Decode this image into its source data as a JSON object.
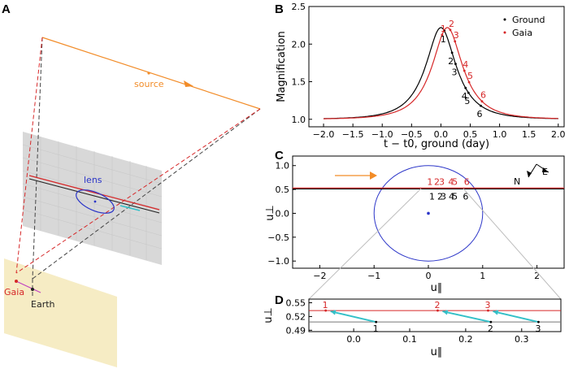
{
  "panel_labels": {
    "a": "A",
    "b": "B",
    "c": "C",
    "d": "D"
  },
  "panel_a": {
    "source_label": "source",
    "lens_label": "lens",
    "gaia_label": "Gaia",
    "earth_label": "Earth"
  },
  "colors": {
    "ground": "#000000",
    "gaia": "#d62728",
    "source": "#f28c28",
    "lens": "#2b35c8",
    "arrow": "#33c0c8",
    "plane": "#d8d8d8",
    "earth_plane": "#f6ecc4"
  },
  "chart_data": [
    {
      "panel": "B",
      "type": "line",
      "xlabel": "t − t0, ground (day)",
      "ylabel": "Magnification",
      "xlim": [
        -2.25,
        2.1
      ],
      "ylim": [
        0.9,
        2.5
      ],
      "xticks": [
        "−2.0",
        "−1.5",
        "−1.0",
        "−0.5",
        "0.0",
        "0.5",
        "1.0",
        "1.5",
        "2.0"
      ],
      "yticks": [
        "1.0",
        "1.5",
        "2.0",
        "2.5"
      ],
      "legend": [
        "Ground",
        "Gaia"
      ],
      "legend_placement": "top-right",
      "series": [
        {
          "name": "Ground",
          "peak_t": 0.0,
          "peak_A": 2.22,
          "t_E_day": 0.55,
          "baseline": 1.0
        },
        {
          "name": "Gaia",
          "peak_t": 0.11,
          "peak_A": 2.22,
          "t_E_day": 0.55,
          "baseline": 1.0
        }
      ],
      "epoch_labels": {
        "ground": [
          {
            "n": "1",
            "t": 0.06
          },
          {
            "n": "2",
            "t": 0.19
          },
          {
            "n": "3",
            "t": 0.25
          },
          {
            "n": "4",
            "t": 0.42
          },
          {
            "n": "5",
            "t": 0.47
          },
          {
            "n": "6",
            "t": 0.68
          }
        ],
        "gaia": [
          {
            "n": "1",
            "t": 0.02
          },
          {
            "n": "2",
            "t": 0.16
          },
          {
            "n": "3",
            "t": 0.24
          },
          {
            "n": "4",
            "t": 0.4
          },
          {
            "n": "5",
            "t": 0.48
          },
          {
            "n": "6",
            "t": 0.7
          }
        ]
      }
    },
    {
      "panel": "C",
      "type": "scatter",
      "xlabel": "u∥",
      "ylabel": "u⊥",
      "xlim": [
        -2.5,
        2.5
      ],
      "ylim": [
        -1.15,
        1.2
      ],
      "xticks": [
        "−2",
        "−1",
        "0",
        "1",
        "2"
      ],
      "yticks": [
        "−1.0",
        "−0.5",
        "0.0",
        "0.5",
        "1.0"
      ],
      "einstein_ring_radius": 1.0,
      "lens_position": [
        0,
        0
      ],
      "ground_track_u_perp": 0.51,
      "gaia_track_u_perp": 0.53,
      "compass": {
        "north": "N",
        "east": "E"
      },
      "ground_labels": [
        "1",
        "2",
        "3",
        "4",
        "5",
        "6"
      ],
      "gaia_labels": [
        "1",
        "2",
        "3",
        "4",
        "5",
        "6"
      ]
    },
    {
      "panel": "D",
      "type": "scatter",
      "xlabel": "u∥",
      "ylabel": "u⊥",
      "xlim": [
        -0.08,
        0.37
      ],
      "ylim": [
        0.487,
        0.558
      ],
      "xticks": [
        "0.0",
        "0.1",
        "0.2",
        "0.3"
      ],
      "yticks": [
        "0.49",
        "0.52",
        "0.55"
      ],
      "ground": {
        "u_perp": 0.508,
        "points": [
          {
            "n": "1",
            "x": 0.04
          },
          {
            "n": "2",
            "x": 0.245
          },
          {
            "n": "3",
            "x": 0.33
          }
        ]
      },
      "gaia": {
        "u_perp": 0.533,
        "points": [
          {
            "n": "1",
            "x": -0.05
          },
          {
            "n": "2",
            "x": 0.15
          },
          {
            "n": "3",
            "x": 0.24
          }
        ]
      }
    }
  ]
}
